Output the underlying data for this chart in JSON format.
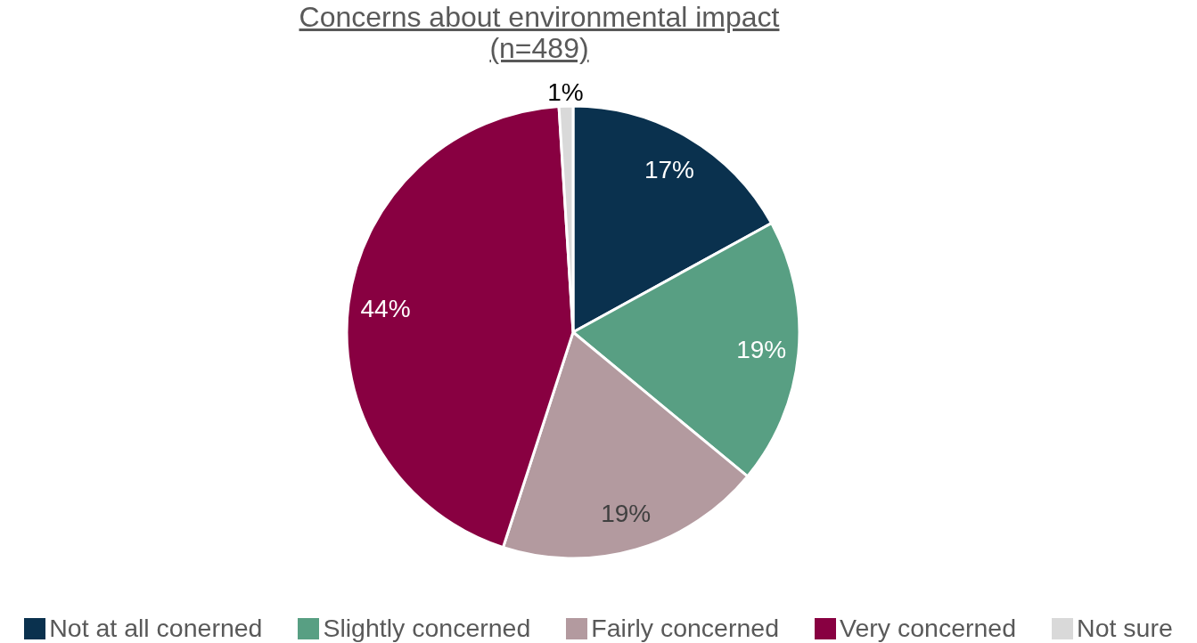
{
  "chart_data": {
    "type": "pie",
    "title": "Concerns about environmental impact",
    "subtitle": "(n=489)",
    "categories": [
      "Not at all conerned",
      "Slightly concerned",
      "Fairly concerned",
      "Very concerned",
      "Not sure"
    ],
    "values": [
      17,
      19,
      19,
      44,
      1
    ],
    "colors": [
      "#0a314e",
      "#589f83",
      "#b39a9f",
      "#880041",
      "#d9d9d9"
    ],
    "value_labels": [
      "17%",
      "19%",
      "19%",
      "44%",
      "1%"
    ],
    "legend": "bottom"
  }
}
